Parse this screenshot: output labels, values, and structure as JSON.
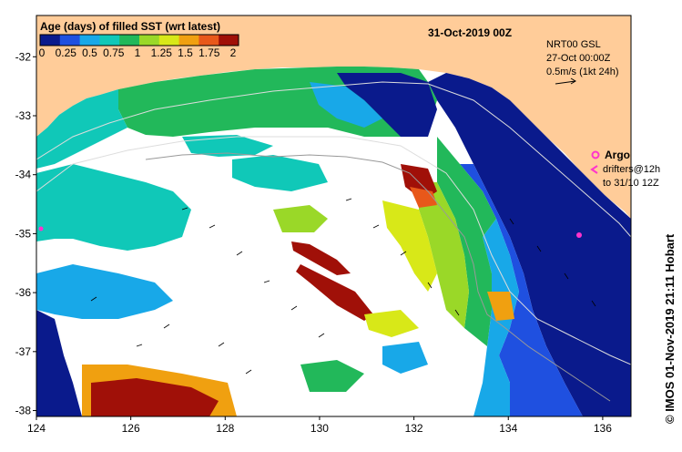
{
  "header": {
    "date_title": "31-Oct-2019 00Z",
    "colorbar_title": "Age (days) of filled SST (wrt latest)",
    "colorbar_ticks": [
      "0",
      "0.25",
      "0.5",
      "0.75",
      "1",
      "1.25",
      "1.5",
      "1.75",
      "2"
    ],
    "colorbar_colors": [
      "#0a1a8c",
      "#1f50e0",
      "#18a8e8",
      "#10c8b8",
      "#22b85a",
      "#9ad828",
      "#d8e818",
      "#f0a010",
      "#e8581a",
      "#a01008"
    ]
  },
  "velocity_legend": {
    "line1": "NRT00 GSL",
    "line2": "27-Oct 00:00Z",
    "line3": "0.5m/s (1kt 24h)"
  },
  "argo_legend": {
    "argo_label": "Argo",
    "drifters_line1": "drifters@12h",
    "drifters_line2": "to 31/10 12Z"
  },
  "credit": "© IMOS 01-Nov-2019 21:11 Hobart",
  "axes": {
    "x_ticks": [
      "124",
      "126",
      "128",
      "130",
      "132",
      "134",
      "136"
    ],
    "y_ticks": [
      "-32",
      "-33",
      "-34",
      "-35",
      "-36",
      "-37",
      "-38"
    ],
    "lon_range": [
      124,
      136.6
    ],
    "lat_range": [
      -38.1,
      -31.3
    ]
  },
  "colors": {
    "land": "#ffcc99",
    "no_data": "#ffffff",
    "argo_marker": "#ff33cc",
    "coast_line": "#888888"
  }
}
